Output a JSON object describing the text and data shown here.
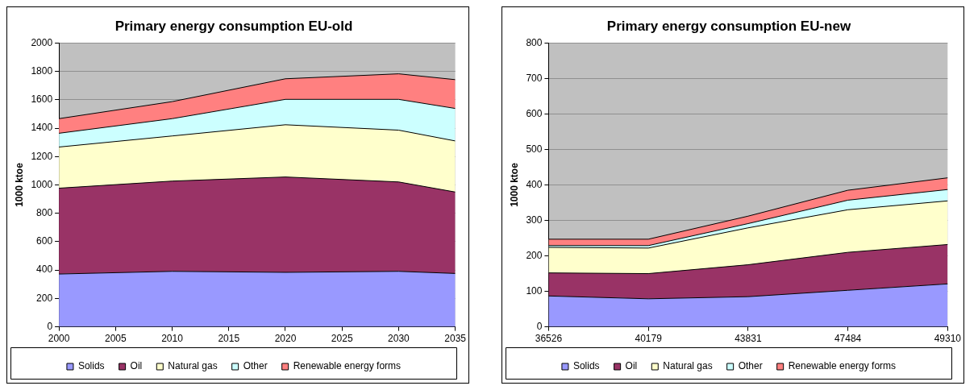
{
  "chart_data": [
    {
      "type": "area",
      "title": "Primary energy consumption EU-old",
      "ylabel": "1000 ktoe",
      "stacked": true,
      "x": [
        2000,
        2010,
        2020,
        2030,
        2035
      ],
      "xlim": [
        2000,
        2035
      ],
      "xticks": [
        2000,
        2005,
        2010,
        2015,
        2020,
        2025,
        2030,
        2035
      ],
      "ylim": [
        0,
        2000
      ],
      "yticks": [
        0,
        200,
        400,
        600,
        800,
        1000,
        1200,
        1400,
        1600,
        1800,
        2000
      ],
      "grid": "y",
      "legend": "bottom",
      "series": [
        {
          "name": "Solids",
          "color": "#9999ff",
          "values": [
            372,
            391,
            384,
            391,
            376
          ]
        },
        {
          "name": "Oil",
          "color": "#993366",
          "values": [
            605,
            636,
            672,
            630,
            574
          ]
        },
        {
          "name": "Natural gas",
          "color": "#ffffcc",
          "values": [
            290,
            318,
            368,
            365,
            360
          ]
        },
        {
          "name": "Other",
          "color": "#ccffff",
          "values": [
            97,
            122,
            179,
            217,
            229
          ]
        },
        {
          "name": "Renewable energy forms",
          "color": "#ff8080",
          "values": [
            103,
            120,
            145,
            180,
            203
          ]
        }
      ]
    },
    {
      "type": "area",
      "title": "Primary energy consumption EU-new",
      "ylabel": "1000 ktoe",
      "stacked": true,
      "categories": [
        "36526",
        "40179",
        "43831",
        "47484",
        "49310"
      ],
      "ylim": [
        0,
        800
      ],
      "yticks": [
        0,
        100,
        200,
        300,
        400,
        500,
        600,
        700,
        800
      ],
      "grid": "y",
      "legend": "bottom",
      "series": [
        {
          "name": "Solids",
          "color": "#9999ff",
          "values": [
            87,
            79,
            85,
            103,
            121
          ]
        },
        {
          "name": "Oil",
          "color": "#993366",
          "values": [
            65,
            71,
            90,
            107,
            111
          ]
        },
        {
          "name": "Natural gas",
          "color": "#ffffcc",
          "values": [
            72,
            72,
            104,
            120,
            123
          ]
        },
        {
          "name": "Other",
          "color": "#ccffff",
          "values": [
            5,
            7,
            12,
            27,
            32
          ]
        },
        {
          "name": "Renewable energy forms",
          "color": "#ff8080",
          "values": [
            18,
            18,
            21,
            28,
            33
          ]
        }
      ]
    }
  ]
}
